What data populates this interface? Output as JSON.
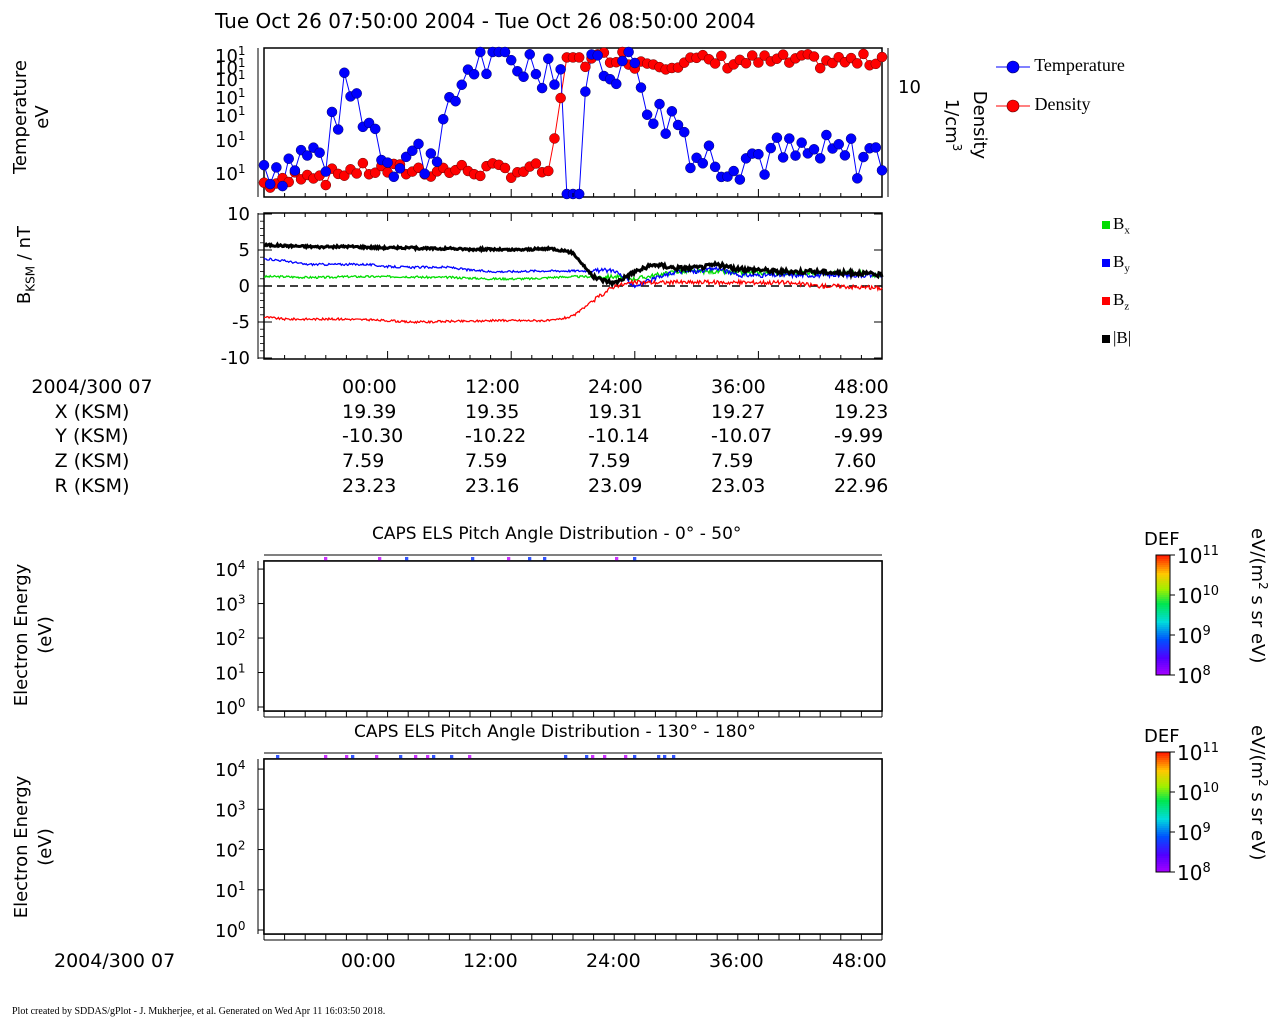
{
  "title": "Tue Oct 26 07:50:00 2004 - Tue Oct 26 08:50:00 2004",
  "panel1": {
    "ylabel_line1": "Temperature",
    "ylabel_line2": "eV",
    "right_label_line1": "Density",
    "right_label_line2": "1/cm",
    "right_label_sup": "3",
    "left_ticks": [
      "10",
      "10",
      "10",
      "10",
      "10",
      "10",
      "10"
    ],
    "left_tick_exp": "1",
    "right_tick": "10",
    "right_tick_exp": "-1",
    "legend": [
      {
        "label": "Temperature",
        "color": "#0000ff"
      },
      {
        "label": "Density",
        "color": "#ff0000"
      }
    ]
  },
  "panel2": {
    "ylabel_main": "B",
    "ylabel_sub": "KSM",
    "ylabel_unit": " / nT",
    "yticks": [
      "10",
      "5",
      "0",
      "-5",
      "-10"
    ],
    "legend": [
      {
        "sym": "B",
        "sub": "x",
        "color": "#00dd00"
      },
      {
        "sym": "B",
        "sub": "y",
        "color": "#0000ff"
      },
      {
        "sym": "B",
        "sub": "z",
        "color": "#ff0000"
      },
      {
        "sym": "|B|",
        "sub": "",
        "color": "#000000"
      }
    ]
  },
  "ephemeris": {
    "rows": [
      {
        "label": "2004/300 07",
        "values": [
          "00:00",
          "12:00",
          "24:00",
          "36:00",
          "48:00"
        ]
      },
      {
        "label": "X (KSM)",
        "values": [
          "19.39",
          "19.35",
          "19.31",
          "19.27",
          "19.23"
        ]
      },
      {
        "label": "Y (KSM)",
        "values": [
          "-10.30",
          "-10.22",
          "-10.14",
          "-10.07",
          "-9.99"
        ]
      },
      {
        "label": "Z (KSM)",
        "values": [
          "7.59",
          "7.59",
          "7.59",
          "7.59",
          "7.60"
        ]
      },
      {
        "label": "R (KSM)",
        "values": [
          "23.23",
          "23.16",
          "23.09",
          "23.03",
          "22.96"
        ]
      }
    ]
  },
  "spec1": {
    "title": "CAPS ELS Pitch Angle Distribution - 0° - 50°",
    "ylabel_line1": "Electron Energy",
    "ylabel_line2": "(eV)"
  },
  "spec2": {
    "title": "CAPS ELS Pitch Angle Distribution - 130° - 180°",
    "ylabel_line1": "Electron Energy",
    "ylabel_line2": "(eV)"
  },
  "spec_yticks": [
    {
      "base": "10",
      "exp": "4"
    },
    {
      "base": "10",
      "exp": "3"
    },
    {
      "base": "10",
      "exp": "2"
    },
    {
      "base": "10",
      "exp": "1"
    },
    {
      "base": "10",
      "exp": "0"
    }
  ],
  "colorbar": {
    "title": "DEF",
    "unit_line": "eV/(m",
    "unit_sup": "2",
    "unit_tail": " s sr eV)",
    "ticks": [
      {
        "base": "10",
        "exp": "11"
      },
      {
        "base": "10",
        "exp": "10"
      },
      {
        "base": "10",
        "exp": "9"
      },
      {
        "base": "10",
        "exp": "8"
      }
    ]
  },
  "bottom_axis": {
    "label": "2004/300 07",
    "ticks": [
      "00:00",
      "12:00",
      "24:00",
      "36:00",
      "48:00"
    ]
  },
  "footer": "Plot created by SDDAS/gPlot - J. Mukherjee, et al.  Generated on Wed Apr 11 16:03:50 2018.",
  "colors": {
    "temperature": "#0000ff",
    "density": "#ff0000",
    "bx": "#00dd00",
    "by": "#0000ff",
    "bz": "#ff0000",
    "bmag": "#000000"
  },
  "chart_data": [
    {
      "type": "scatter",
      "panel": "plasma moments",
      "title": "Tue Oct 26 07:50:00 2004 - Tue Oct 26 08:50:00 2004",
      "xlabel": "",
      "ylabel": "Temperature eV",
      "y2label": "Density 1/cm3",
      "ylog": true,
      "x_unit": "minutes after 2004/300 07:50:00",
      "series": [
        {
          "name": "Temperature",
          "axis": "left",
          "x": [
            0,
            2,
            4,
            6,
            8,
            10,
            12,
            14,
            16,
            18,
            20,
            22,
            24,
            26,
            28,
            30,
            32,
            34,
            36,
            38,
            40,
            42,
            44,
            46,
            48,
            50,
            52,
            54,
            56,
            58,
            60
          ],
          "y": [
            28,
            28,
            30,
            30,
            50,
            40,
            30,
            30,
            30,
            40,
            60,
            60,
            60,
            60,
            60,
            55,
            60,
            60,
            60,
            40,
            40,
            30,
            30,
            30,
            30,
            30,
            30,
            30,
            30,
            30,
            30
          ]
        },
        {
          "name": "Density",
          "axis": "right",
          "x": [
            0,
            2,
            4,
            6,
            8,
            10,
            12,
            14,
            16,
            18,
            20,
            22,
            24,
            26,
            28,
            30,
            32,
            34,
            36,
            38,
            40,
            42,
            44,
            46,
            48,
            50,
            52,
            54,
            56,
            58,
            60
          ],
          "y": [
            0.02,
            0.02,
            0.025,
            0.022,
            0.025,
            0.025,
            0.025,
            0.025,
            0.025,
            0.025,
            0.025,
            0.025,
            0.025,
            0.025,
            0.025,
            0.15,
            0.15,
            0.17,
            0.15,
            0.15,
            0.15,
            0.15,
            0.15,
            0.15,
            0.15,
            0.15,
            0.15,
            0.15,
            0.15,
            0.15,
            0.16
          ]
        }
      ]
    },
    {
      "type": "line",
      "panel": "magnetic field",
      "ylabel": "B KSM / nT",
      "ylim": [
        -10,
        10
      ],
      "x_unit": "minutes after 2004/300 07:50:00",
      "x": [
        0,
        2,
        4,
        6,
        8,
        10,
        12,
        14,
        16,
        18,
        20,
        22,
        24,
        26,
        28,
        30,
        32,
        34,
        36,
        38,
        40,
        42,
        44,
        46,
        48,
        50,
        52,
        54,
        56,
        58,
        60
      ],
      "series": [
        {
          "name": "Bx",
          "values": [
            1.3,
            1.3,
            1.2,
            1.2,
            1.3,
            1.3,
            1.3,
            1.3,
            1.2,
            1.2,
            1.1,
            1.0,
            1.0,
            1.0,
            1.2,
            1.3,
            1.3,
            1.3,
            1.0,
            1.5,
            2.0,
            2.0,
            2.0,
            1.8,
            1.8,
            1.8,
            1.8,
            1.8,
            1.8,
            1.8,
            1.3
          ]
        },
        {
          "name": "By",
          "values": [
            3.8,
            3.5,
            3.0,
            3.0,
            3.0,
            3.0,
            2.7,
            2.6,
            2.6,
            2.6,
            2.2,
            2.0,
            2.0,
            2.1,
            2.1,
            2.1,
            2.1,
            2.2,
            0.0,
            1.0,
            2.0,
            2.0,
            2.5,
            1.5,
            1.5,
            1.5,
            1.5,
            1.5,
            1.5,
            1.5,
            1.5
          ]
        },
        {
          "name": "Bz",
          "values": [
            -4.3,
            -4.6,
            -4.6,
            -4.6,
            -4.6,
            -4.7,
            -4.8,
            -5.0,
            -5.0,
            -4.9,
            -4.9,
            -4.8,
            -4.8,
            -4.8,
            -4.8,
            -4.2,
            -2.0,
            0.0,
            0.5,
            0.5,
            0.5,
            0.5,
            0.5,
            0.5,
            0.5,
            0.5,
            0.3,
            0.0,
            0.0,
            -0.2,
            -0.3
          ]
        },
        {
          "name": "|B|",
          "values": [
            5.7,
            5.6,
            5.5,
            5.4,
            5.5,
            5.4,
            5.3,
            5.3,
            5.2,
            5.2,
            5.1,
            5.1,
            5.0,
            5.1,
            5.2,
            4.6,
            1.2,
            0.4,
            2.0,
            3.0,
            2.5,
            2.5,
            3.0,
            2.3,
            2.3,
            2.0,
            2.0,
            2.0,
            1.8,
            1.8,
            1.5
          ]
        }
      ]
    },
    {
      "type": "heatmap",
      "panel": "CAPS ELS Pitch Angle Distribution - 0° - 50°",
      "xlabel": "2004/300 07",
      "ylabel": "Electron Energy (eV)",
      "ylog": true,
      "colorbar": "DEF eV/(m2 s sr eV)",
      "clim": [
        100000000.0,
        100000000000.0
      ]
    },
    {
      "type": "heatmap",
      "panel": "CAPS ELS Pitch Angle Distribution - 130° - 180°",
      "xlabel": "2004/300 07",
      "ylabel": "Electron Energy (eV)",
      "ylog": true,
      "colorbar": "DEF eV/(m2 s sr eV)",
      "clim": [
        100000000.0,
        100000000000.0
      ]
    }
  ]
}
